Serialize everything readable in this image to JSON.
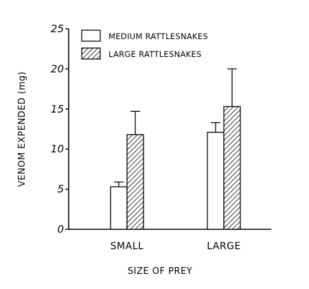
{
  "chart_data": {
    "type": "bar",
    "xlabel": "SIZE OF PREY",
    "ylabel": "VENOM EXPENDED (mg)",
    "categories": [
      "SMALL",
      "LARGE"
    ],
    "ylim": [
      0,
      25
    ],
    "yticks": [
      0,
      5,
      10,
      15,
      20,
      25
    ],
    "grid": false,
    "legend_position": "top-left",
    "series": [
      {
        "name": "MEDIUM RATTLESNAKES",
        "values": [
          5.3,
          12.1
        ],
        "error_upper": [
          5.9,
          13.3
        ],
        "fill": "white"
      },
      {
        "name": "LARGE RATTLESNAKES",
        "values": [
          11.8,
          15.3
        ],
        "error_upper": [
          14.7,
          20.0
        ],
        "fill": "hatched"
      }
    ]
  }
}
